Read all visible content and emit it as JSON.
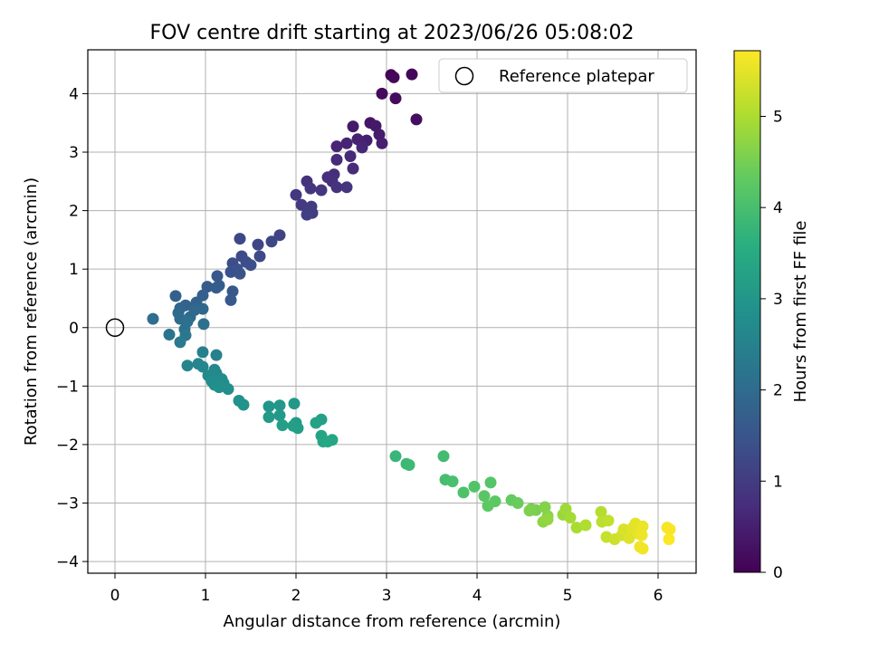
{
  "chart_data": {
    "type": "scatter",
    "title": "FOV centre drift starting at 2023/06/26 05:08:02",
    "xlabel": "Angular distance from reference (arcmin)",
    "ylabel": "Rotation from reference (arcmin)",
    "xlim": [
      -0.3,
      6.42
    ],
    "ylim": [
      -4.2,
      4.75
    ],
    "xticks": [
      0,
      1,
      2,
      3,
      4,
      5,
      6
    ],
    "yticks": [
      -4,
      -3,
      -2,
      -1,
      0,
      1,
      2,
      3,
      4
    ],
    "grid": true,
    "legend": {
      "position": "top-right",
      "entries": [
        "Reference platepar"
      ]
    },
    "reference_point": {
      "x": 0,
      "y": 0
    },
    "colorbar": {
      "label": "Hours from first FF file",
      "min": 0,
      "max": 5.72,
      "ticks": [
        0,
        1,
        2,
        3,
        4,
        5
      ],
      "colormap": "viridis"
    },
    "points": [
      [
        3.05,
        4.32,
        0.05
      ],
      [
        3.28,
        4.33,
        0.08
      ],
      [
        3.08,
        4.28,
        0.1
      ],
      [
        2.95,
        4.0,
        0.15
      ],
      [
        3.1,
        3.92,
        0.18
      ],
      [
        3.33,
        3.56,
        0.22
      ],
      [
        2.82,
        3.5,
        0.35
      ],
      [
        2.88,
        3.45,
        0.38
      ],
      [
        2.63,
        3.44,
        0.42
      ],
      [
        2.92,
        3.3,
        0.45
      ],
      [
        2.95,
        3.15,
        0.5
      ],
      [
        2.78,
        3.2,
        0.52
      ],
      [
        2.68,
        3.22,
        0.55
      ],
      [
        2.56,
        3.15,
        0.58
      ],
      [
        2.45,
        3.1,
        0.6
      ],
      [
        2.73,
        3.08,
        0.63
      ],
      [
        2.6,
        2.93,
        0.66
      ],
      [
        2.45,
        2.87,
        0.68
      ],
      [
        2.63,
        2.72,
        0.72
      ],
      [
        2.42,
        2.62,
        0.75
      ],
      [
        2.35,
        2.57,
        0.78
      ],
      [
        2.4,
        2.5,
        0.8
      ],
      [
        2.12,
        2.5,
        0.83
      ],
      [
        2.45,
        2.4,
        0.85
      ],
      [
        2.56,
        2.4,
        0.88
      ],
      [
        2.16,
        2.38,
        0.9
      ],
      [
        2.28,
        2.35,
        0.92
      ],
      [
        2.0,
        2.27,
        0.95
      ],
      [
        2.06,
        2.1,
        0.98
      ],
      [
        2.17,
        2.07,
        1.0
      ],
      [
        2.13,
        2.0,
        1.02
      ],
      [
        2.18,
        1.96,
        1.05
      ],
      [
        2.12,
        1.93,
        1.08
      ],
      [
        1.82,
        1.58,
        1.15
      ],
      [
        1.58,
        1.42,
        1.2
      ],
      [
        1.73,
        1.47,
        1.23
      ],
      [
        1.38,
        1.52,
        1.25
      ],
      [
        1.6,
        1.22,
        1.28
      ],
      [
        1.4,
        1.22,
        1.32
      ],
      [
        1.45,
        1.12,
        1.35
      ],
      [
        1.3,
        1.1,
        1.38
      ],
      [
        1.5,
        1.07,
        1.4
      ],
      [
        1.35,
        1.0,
        1.43
      ],
      [
        1.28,
        0.95,
        1.46
      ],
      [
        1.38,
        0.92,
        1.5
      ],
      [
        1.13,
        0.88,
        1.55
      ],
      [
        1.3,
        0.62,
        1.58
      ],
      [
        1.28,
        0.47,
        1.6
      ],
      [
        1.15,
        0.72,
        1.63
      ],
      [
        1.02,
        0.7,
        1.66
      ],
      [
        1.12,
        0.68,
        1.7
      ],
      [
        0.97,
        0.55,
        1.73
      ],
      [
        0.67,
        0.54,
        1.77
      ],
      [
        0.9,
        0.43,
        1.8
      ],
      [
        0.78,
        0.38,
        1.83
      ],
      [
        0.72,
        0.33,
        1.86
      ],
      [
        0.97,
        0.32,
        1.9
      ],
      [
        0.88,
        0.3,
        1.92
      ],
      [
        0.7,
        0.25,
        1.95
      ],
      [
        0.83,
        0.18,
        1.98
      ],
      [
        0.72,
        0.15,
        2.0
      ],
      [
        0.42,
        0.15,
        2.05
      ],
      [
        0.8,
        0.1,
        2.08
      ],
      [
        0.98,
        0.06,
        2.1
      ],
      [
        0.77,
        -0.03,
        2.15
      ],
      [
        0.6,
        -0.12,
        2.2
      ],
      [
        0.78,
        -0.13,
        2.25
      ],
      [
        0.72,
        -0.25,
        2.3
      ],
      [
        0.97,
        -0.42,
        2.45
      ],
      [
        1.12,
        -0.47,
        2.5
      ],
      [
        0.8,
        -0.65,
        2.55
      ],
      [
        0.92,
        -0.62,
        2.58
      ],
      [
        0.97,
        -0.67,
        2.62
      ],
      [
        1.1,
        -0.72,
        2.65
      ],
      [
        1.12,
        -0.78,
        2.68
      ],
      [
        1.03,
        -0.82,
        2.7
      ],
      [
        1.18,
        -0.88,
        2.72
      ],
      [
        1.07,
        -0.92,
        2.75
      ],
      [
        1.2,
        -0.95,
        2.78
      ],
      [
        1.1,
        -0.98,
        2.8
      ],
      [
        1.25,
        -1.05,
        2.82
      ],
      [
        1.15,
        -1.02,
        2.84
      ],
      [
        1.37,
        -1.25,
        2.88
      ],
      [
        1.42,
        -1.32,
        2.9
      ],
      [
        1.7,
        -1.35,
        3.0
      ],
      [
        1.82,
        -1.33,
        3.02
      ],
      [
        1.98,
        -1.3,
        3.05
      ],
      [
        1.82,
        -1.5,
        3.08
      ],
      [
        1.7,
        -1.53,
        3.1
      ],
      [
        2.0,
        -1.63,
        3.12
      ],
      [
        2.02,
        -1.72,
        3.15
      ],
      [
        1.85,
        -1.67,
        3.18
      ],
      [
        1.97,
        -1.68,
        3.2
      ],
      [
        2.28,
        -1.57,
        3.25
      ],
      [
        2.22,
        -1.63,
        3.28
      ],
      [
        2.28,
        -1.85,
        3.35
      ],
      [
        2.3,
        -1.95,
        3.38
      ],
      [
        2.4,
        -1.92,
        3.4
      ],
      [
        2.35,
        -1.95,
        3.42
      ],
      [
        3.1,
        -2.2,
        3.8
      ],
      [
        3.22,
        -2.33,
        3.85
      ],
      [
        3.25,
        -2.35,
        3.88
      ],
      [
        3.63,
        -2.2,
        3.95
      ],
      [
        3.65,
        -2.6,
        4.0
      ],
      [
        3.73,
        -2.63,
        4.05
      ],
      [
        3.85,
        -2.82,
        4.1
      ],
      [
        3.97,
        -2.72,
        4.15
      ],
      [
        4.15,
        -2.65,
        4.2
      ],
      [
        4.08,
        -2.88,
        4.25
      ],
      [
        4.2,
        -2.97,
        4.28
      ],
      [
        4.12,
        -3.05,
        4.3
      ],
      [
        4.38,
        -2.95,
        4.35
      ],
      [
        4.45,
        -3.0,
        4.4
      ],
      [
        4.6,
        -3.1,
        4.5
      ],
      [
        4.65,
        -3.12,
        4.55
      ],
      [
        4.58,
        -3.13,
        4.6
      ],
      [
        4.75,
        -3.07,
        4.65
      ],
      [
        4.78,
        -3.22,
        4.7
      ],
      [
        4.73,
        -3.32,
        4.75
      ],
      [
        4.78,
        -3.28,
        4.8
      ],
      [
        4.95,
        -3.2,
        4.85
      ],
      [
        4.98,
        -3.1,
        4.9
      ],
      [
        5.03,
        -3.25,
        4.95
      ],
      [
        5.1,
        -3.42,
        5.0
      ],
      [
        5.2,
        -3.38,
        5.05
      ],
      [
        5.37,
        -3.15,
        5.1
      ],
      [
        5.38,
        -3.32,
        5.15
      ],
      [
        5.45,
        -3.3,
        5.2
      ],
      [
        5.43,
        -3.58,
        5.25
      ],
      [
        5.52,
        -3.62,
        5.3
      ],
      [
        5.6,
        -3.55,
        5.35
      ],
      [
        5.62,
        -3.45,
        5.4
      ],
      [
        5.68,
        -3.6,
        5.45
      ],
      [
        5.72,
        -3.42,
        5.48
      ],
      [
        5.75,
        -3.35,
        5.5
      ],
      [
        5.78,
        -3.52,
        5.53
      ],
      [
        5.83,
        -3.4,
        5.56
      ],
      [
        5.82,
        -3.55,
        5.58
      ],
      [
        5.8,
        -3.75,
        5.6
      ],
      [
        5.83,
        -3.78,
        5.62
      ],
      [
        6.1,
        -3.42,
        5.65
      ],
      [
        6.13,
        -3.45,
        5.68
      ],
      [
        6.12,
        -3.62,
        5.7
      ]
    ]
  }
}
